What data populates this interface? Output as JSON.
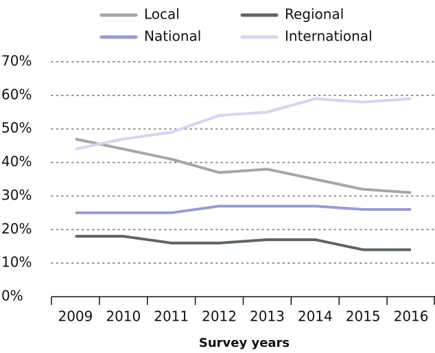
{
  "chart_data": {
    "type": "line",
    "x_label": "Survey years",
    "categories": [
      "2009",
      "2010",
      "2011",
      "2012",
      "2013",
      "2014",
      "2015",
      "2016"
    ],
    "series": [
      {
        "name": "Local",
        "color": "#a6a6a6",
        "values": [
          47,
          44,
          41,
          37,
          38,
          35,
          32,
          31
        ]
      },
      {
        "name": "Regional",
        "color": "#5f6660",
        "values": [
          18,
          18,
          16,
          16,
          17,
          17,
          14,
          14
        ]
      },
      {
        "name": "National",
        "color": "#9b9ccb",
        "values": [
          25,
          25,
          25,
          27,
          27,
          27,
          26,
          26
        ]
      },
      {
        "name": "International",
        "color": "#d5d5ea",
        "values": [
          44,
          47,
          49,
          54,
          55,
          59,
          58,
          59
        ]
      }
    ],
    "ylim": [
      0,
      70
    ],
    "yticks": [
      {
        "value": 0,
        "label": "0%"
      },
      {
        "value": 10,
        "label": "10%"
      },
      {
        "value": 20,
        "label": "20%"
      },
      {
        "value": 30,
        "label": "30%"
      },
      {
        "value": 40,
        "label": "40%"
      },
      {
        "value": 50,
        "label": "50%"
      },
      {
        "value": 60,
        "label": "60%"
      },
      {
        "value": 70,
        "label": "70%"
      }
    ],
    "grid": true,
    "legend": "top"
  }
}
